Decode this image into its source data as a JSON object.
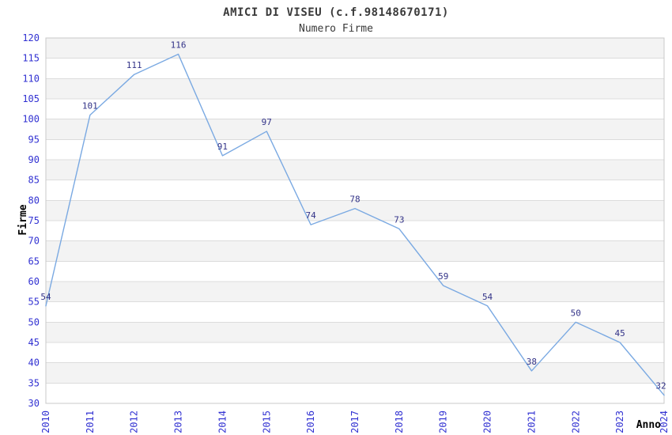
{
  "header": {
    "title": "AMICI DI VISEU (c.f.98148670171)",
    "subtitle": "Numero Firme"
  },
  "chart_data": {
    "type": "line",
    "title": "AMICI DI VISEU (c.f.98148670171)",
    "subtitle": "Numero Firme",
    "xlabel": "Anno",
    "ylabel": "Firme",
    "x": [
      2010,
      2011,
      2012,
      2013,
      2014,
      2015,
      2016,
      2017,
      2018,
      2019,
      2020,
      2021,
      2022,
      2023,
      2024
    ],
    "values": [
      54,
      101,
      111,
      116,
      91,
      97,
      74,
      78,
      73,
      59,
      54,
      38,
      50,
      45,
      32
    ],
    "ylim": [
      30,
      120
    ],
    "ytick_step": 5,
    "grid": "horizontal-lines-with-alternating-bands",
    "legend": "none",
    "point_labels_visible": true,
    "colors": {
      "line": "#7aa9e2",
      "tick_label": "#3232d2",
      "point_label": "#333388",
      "title_text": "#3a3a3a",
      "axis_title_text": "#000000",
      "band_alt": "#f3f3f3",
      "grid_line": "#dcdcdc",
      "plot_border": "#c8c8c8",
      "background": "#ffffff"
    }
  }
}
